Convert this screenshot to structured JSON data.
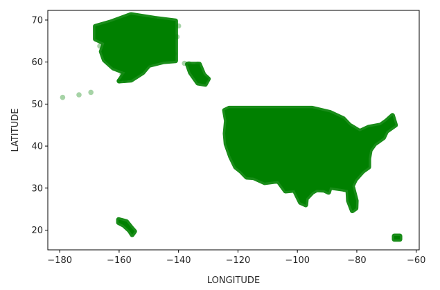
{
  "chart_data": {
    "type": "scatter",
    "title": "",
    "xlabel": "LONGITUDE",
    "ylabel": "LATITUDE",
    "xlim": [
      -184,
      -59
    ],
    "ylim": [
      15.3,
      72.3
    ],
    "xticks": [
      -180,
      -160,
      -140,
      -120,
      -100,
      -80,
      -60
    ],
    "yticks": [
      20,
      30,
      40,
      50,
      60,
      70
    ],
    "grid": false,
    "legend": "none",
    "marker_color": "#008000",
    "regions": [
      {
        "name": "Alaska",
        "outline": [
          [
            -168,
            68.5
          ],
          [
            -163,
            69.5
          ],
          [
            -156,
            71.3
          ],
          [
            -148,
            70.4
          ],
          [
            -141,
            69.8
          ],
          [
            -141,
            60.3
          ],
          [
            -145,
            60.1
          ],
          [
            -150,
            59.2
          ],
          [
            -152,
            57.5
          ],
          [
            -156,
            55.7
          ],
          [
            -160,
            55.5
          ],
          [
            -158,
            57.5
          ],
          [
            -162,
            58.6
          ],
          [
            -165,
            60.5
          ],
          [
            -166,
            62.5
          ],
          [
            -165,
            64.5
          ],
          [
            -168,
            65.5
          ]
        ]
      },
      {
        "name": "Alaska panhandle",
        "outline": [
          [
            -137,
            59.5
          ],
          [
            -133,
            59.5
          ],
          [
            -131.5,
            57
          ],
          [
            -130,
            56
          ],
          [
            -131,
            54.7
          ],
          [
            -133.5,
            55
          ],
          [
            -136,
            57.5
          ]
        ]
      },
      {
        "name": "CONUS",
        "outline": [
          [
            -124.5,
            48.5
          ],
          [
            -123,
            49
          ],
          [
            -95,
            49
          ],
          [
            -89,
            48
          ],
          [
            -84.5,
            46.5
          ],
          [
            -82.5,
            45
          ],
          [
            -79,
            43.5
          ],
          [
            -76,
            44.5
          ],
          [
            -72,
            45
          ],
          [
            -70,
            46
          ],
          [
            -68,
            47.3
          ],
          [
            -67,
            45
          ],
          [
            -70,
            43.5
          ],
          [
            -71,
            42
          ],
          [
            -74,
            40.5
          ],
          [
            -75.5,
            39
          ],
          [
            -76,
            37
          ],
          [
            -76,
            35
          ],
          [
            -78,
            34
          ],
          [
            -80.5,
            32
          ],
          [
            -81.5,
            30.5
          ],
          [
            -80.2,
            27
          ],
          [
            -80.3,
            25.2
          ],
          [
            -81.5,
            24.6
          ],
          [
            -82.8,
            27
          ],
          [
            -83,
            29.5
          ],
          [
            -85,
            29.8
          ],
          [
            -89,
            30.2
          ],
          [
            -89.5,
            29
          ],
          [
            -91,
            29.5
          ],
          [
            -93.5,
            29.6
          ],
          [
            -95,
            29
          ],
          [
            -97,
            27.5
          ],
          [
            -97.2,
            26
          ],
          [
            -99,
            26.6
          ],
          [
            -101,
            29.5
          ],
          [
            -104,
            29.3
          ],
          [
            -106.5,
            31.7
          ],
          [
            -111,
            31.3
          ],
          [
            -114.8,
            32.5
          ],
          [
            -117.1,
            32.6
          ],
          [
            -119,
            34
          ],
          [
            -120.8,
            35
          ],
          [
            -122.5,
            37.5
          ],
          [
            -124,
            40.5
          ],
          [
            -124.3,
            43
          ],
          [
            -123.9,
            46
          ]
        ]
      },
      {
        "name": "Hawaii",
        "outline": [
          [
            -160.2,
            22.5
          ],
          [
            -157.5,
            22
          ],
          [
            -155.8,
            20.5
          ],
          [
            -154.8,
            19.7
          ],
          [
            -155.6,
            18.9
          ],
          [
            -156.5,
            19.9
          ],
          [
            -158.5,
            21.2
          ],
          [
            -160.2,
            21.8
          ]
        ]
      },
      {
        "name": "Puerto Rico",
        "outline": [
          [
            -67.4,
            18.6
          ],
          [
            -65.5,
            18.6
          ],
          [
            -65.5,
            17.8
          ],
          [
            -67.4,
            17.8
          ]
        ]
      }
    ],
    "points": [
      [
        -179,
        51.6
      ],
      [
        -173.5,
        52.2
      ],
      [
        -169.5,
        52.8
      ],
      [
        -166.5,
        63.8
      ],
      [
        -167,
        68
      ],
      [
        -164,
        68.2
      ],
      [
        -162,
        69
      ],
      [
        -158,
        69.9
      ],
      [
        -153,
        70.3
      ],
      [
        -152.5,
        69.5
      ],
      [
        -148,
        70.2
      ],
      [
        -144,
        69.5
      ],
      [
        -140,
        68.6
      ],
      [
        -138,
        59.7
      ],
      [
        -136.5,
        59.6
      ],
      [
        -133.5,
        59.5
      ],
      [
        -131,
        55.8
      ],
      [
        -130.5,
        56
      ],
      [
        -160,
        55.5
      ],
      [
        -158,
        55.7
      ],
      [
        -159,
        57
      ],
      [
        -155,
        57.5
      ],
      [
        -150,
        59.5
      ],
      [
        -146,
        60.5
      ],
      [
        -142,
        60.8
      ],
      [
        -141.5,
        62
      ],
      [
        -140.5,
        66
      ]
    ]
  }
}
